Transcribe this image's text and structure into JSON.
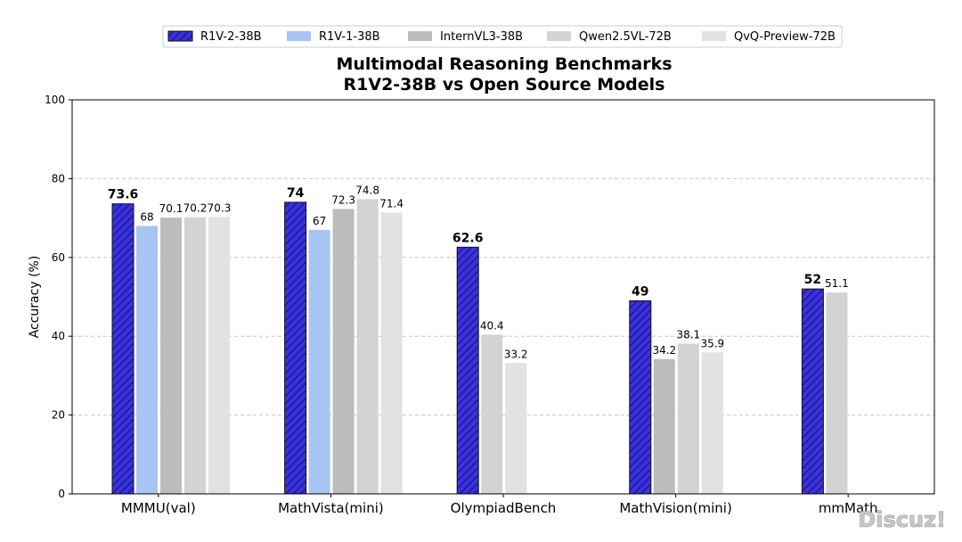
{
  "chart_data": {
    "type": "bar",
    "title": "Multimodal Reasoning Benchmarks",
    "subtitle": "R1V2-38B vs Open Source Models",
    "ylabel": "Accuracy (%)",
    "xlabel": "",
    "ylim": [
      0,
      100
    ],
    "yticks": [
      0,
      20,
      40,
      60,
      80,
      100
    ],
    "grid": "horizontal-dashed",
    "legend_position": "top-center",
    "categories": [
      "MMMU(val)",
      "MathVista(mini)",
      "OlympiadBench",
      "MathVision(mini)",
      "mmMath"
    ],
    "series": [
      {
        "name": "R1V-2-38B",
        "color": "#3a32e0",
        "hatch": true,
        "values": [
          73.6,
          74,
          62.6,
          49,
          52
        ]
      },
      {
        "name": "R1V-1-38B",
        "color": "#a8c4f2",
        "hatch": false,
        "values": [
          68,
          67,
          null,
          null,
          null
        ]
      },
      {
        "name": "InternVL3-38B",
        "color": "#bcbcbc",
        "hatch": false,
        "values": [
          70.1,
          72.3,
          null,
          34.2,
          null
        ]
      },
      {
        "name": "Qwen2.5VL-72B",
        "color": "#d3d3d3",
        "hatch": false,
        "values": [
          70.2,
          74.8,
          40.4,
          38.1,
          51.1
        ]
      },
      {
        "name": "QvQ-Preview-72B",
        "color": "#e1e2e1",
        "hatch": false,
        "values": [
          70.3,
          71.4,
          33.2,
          35.9,
          null
        ]
      }
    ]
  },
  "watermark": "Discuz!"
}
